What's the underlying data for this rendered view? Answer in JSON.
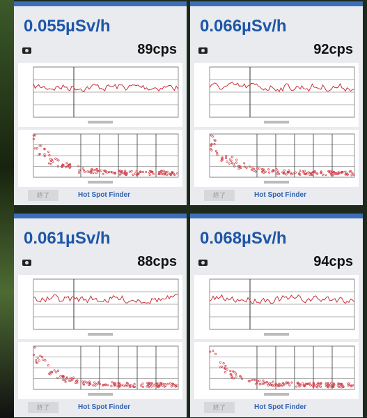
{
  "panels": [
    {
      "dose": "0.055µSv/h",
      "cps": "89cps",
      "button": "終了",
      "app": "Hot Spot Finder"
    },
    {
      "dose": "0.066µSv/h",
      "cps": "92cps",
      "button": "終了",
      "app": "Hot Spot Finder"
    },
    {
      "dose": "0.061µSv/h",
      "cps": "88cps",
      "button": "終了",
      "app": "Hot Spot Finder"
    },
    {
      "dose": "0.068µSv/h",
      "cps": "94cps",
      "button": "終了",
      "app": "Hot Spot Finder"
    }
  ]
}
